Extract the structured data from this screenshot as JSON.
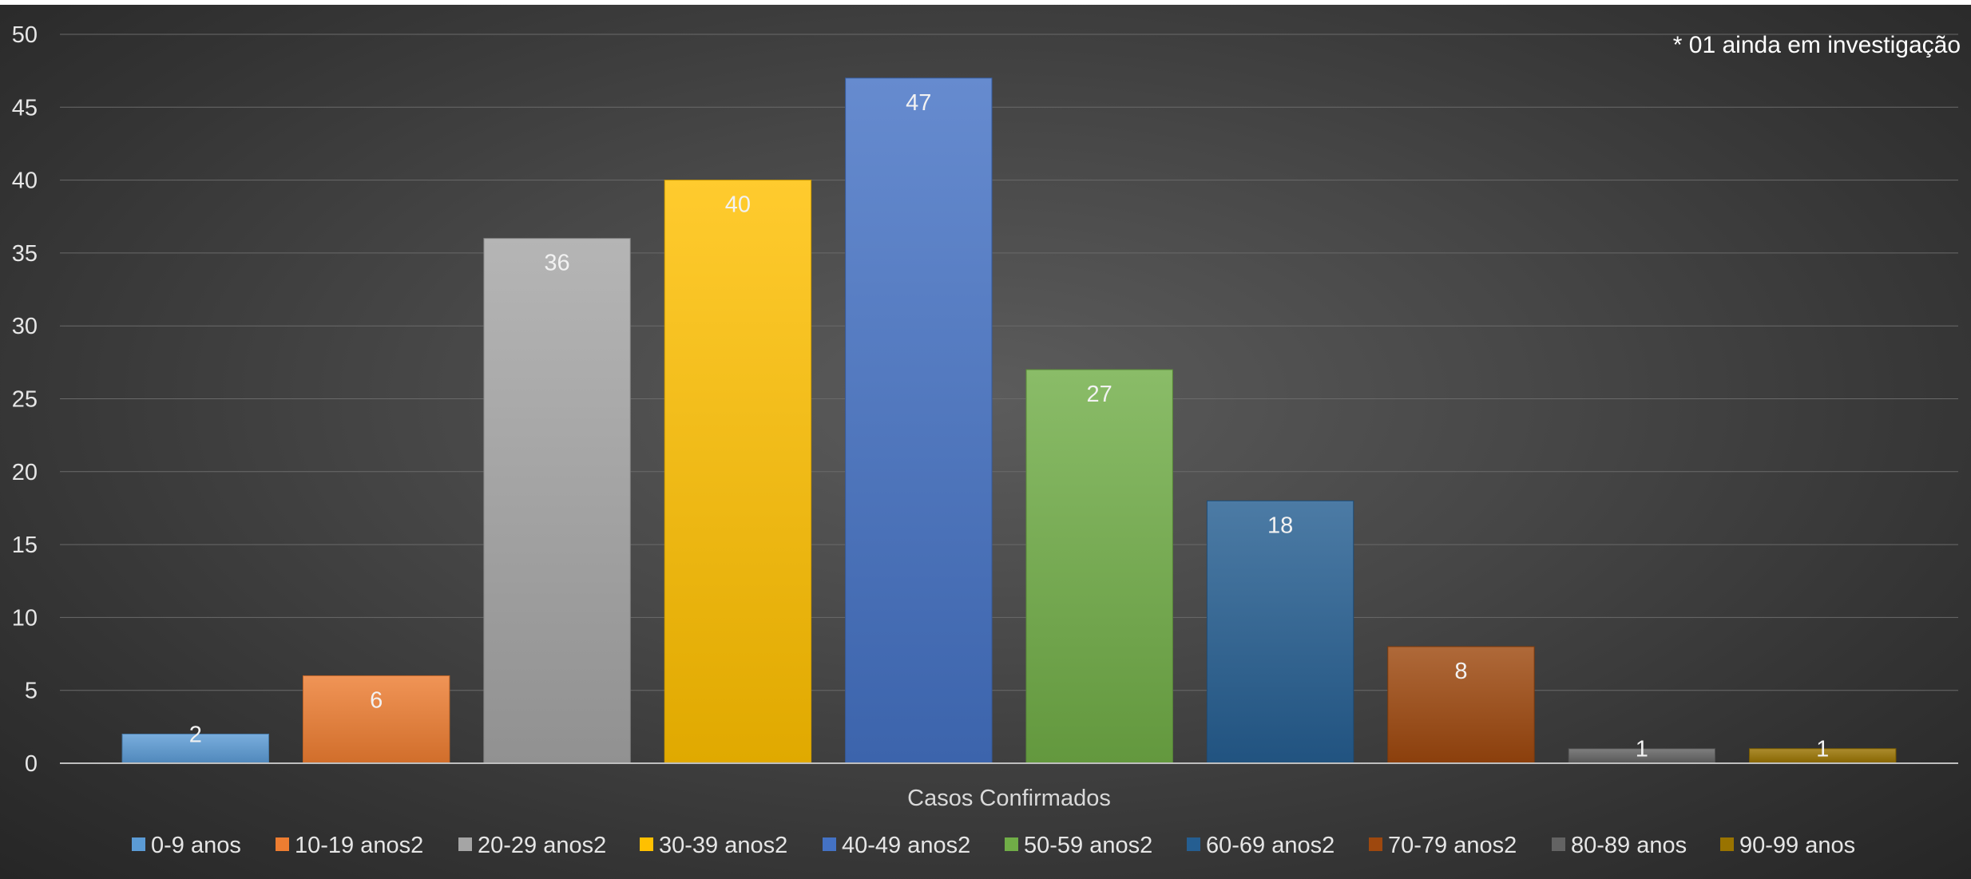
{
  "chart_data": {
    "type": "bar",
    "xlabel": "Casos Confirmados",
    "ylabel": "",
    "ylim": [
      0,
      50
    ],
    "ytick_step": 5,
    "grid": true,
    "legend_position": "bottom",
    "annotation": "* 01 ainda em investigação",
    "series": [
      {
        "name": "0-9 anos",
        "value": 2,
        "color": "#5b9bd5"
      },
      {
        "name": "10-19 anos2",
        "value": 6,
        "color": "#ed7d31"
      },
      {
        "name": "20-29 anos2",
        "value": 36,
        "color": "#a5a5a5"
      },
      {
        "name": "30-39 anos2",
        "value": 40,
        "color": "#ffc000"
      },
      {
        "name": "40-49 anos2",
        "value": 47,
        "color": "#4472c4"
      },
      {
        "name": "50-59 anos2",
        "value": 27,
        "color": "#70ad47"
      },
      {
        "name": "60-69 anos2",
        "value": 18,
        "color": "#255e91"
      },
      {
        "name": "70-79 anos2",
        "value": 8,
        "color": "#9e480e"
      },
      {
        "name": "80-89 anos",
        "value": 1,
        "color": "#636363"
      },
      {
        "name": "90-99 anos",
        "value": 1,
        "color": "#997300"
      }
    ]
  }
}
